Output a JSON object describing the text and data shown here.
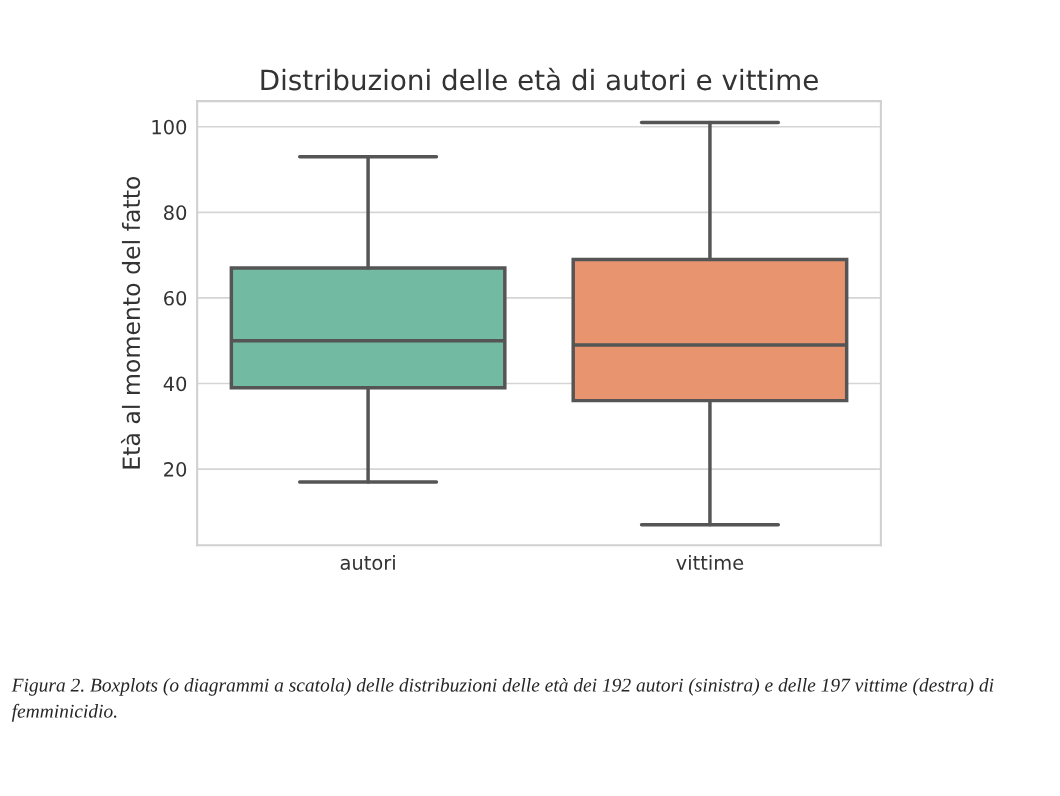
{
  "chart_data": {
    "type": "box",
    "title": "Distribuzioni delle età di autori e vittime",
    "ylabel": "Età al momento del fatto",
    "categories": [
      "autori",
      "vittime"
    ],
    "boxes": [
      {
        "low": 17,
        "q1": 39,
        "median": 50,
        "q3": 67,
        "high": 93
      },
      {
        "low": 7,
        "q1": 36,
        "median": 49,
        "q3": 69,
        "high": 101
      }
    ],
    "colors": [
      "#72bba2",
      "#e8956f"
    ],
    "ylim": [
      2.2,
      106
    ],
    "yticks": [
      20,
      40,
      60,
      80,
      100
    ],
    "grid": "y",
    "annotations": [
      "Figura 2. Boxplots (o diagrammi a scatola) delle distribuzioni delle età dei 192 autori (sinistra) e delle 197 vittime (destra) di femminicidio."
    ]
  }
}
